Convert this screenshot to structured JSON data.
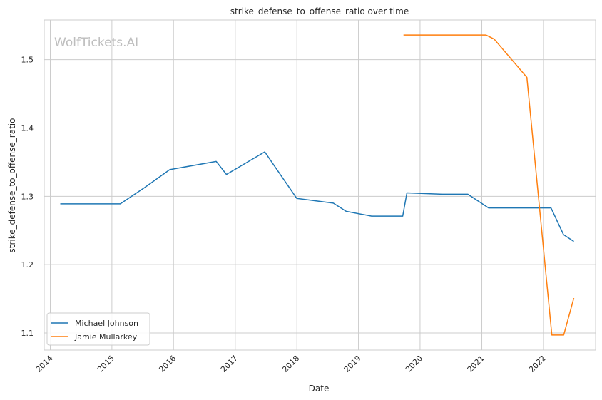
{
  "chart_data": {
    "type": "line",
    "title": "strike_defense_to_offense_ratio over time",
    "xlabel": "Date",
    "ylabel": "strike_defense_to_offense_ratio",
    "watermark": "WolfTickets.AI",
    "x_ticks": [
      "2014",
      "2015",
      "2016",
      "2017",
      "2018",
      "2019",
      "2020",
      "2021",
      "2022"
    ],
    "y_ticks": [
      "1.1",
      "1.2",
      "1.3",
      "1.4",
      "1.5"
    ],
    "xlim": [
      "2013-11-26",
      "2022-11-06"
    ],
    "ylim": [
      1.075,
      1.558
    ],
    "grid": true,
    "legend_position": "lower-left",
    "series": [
      {
        "name": "Michael Johnson",
        "color": "#1f77b4",
        "points": [
          [
            "2014-03-01",
            1.289
          ],
          [
            "2015-02-20",
            1.289
          ],
          [
            "2015-07-15",
            1.313
          ],
          [
            "2015-12-10",
            1.339
          ],
          [
            "2016-09-10",
            1.351
          ],
          [
            "2016-11-10",
            1.332
          ],
          [
            "2017-06-25",
            1.365
          ],
          [
            "2017-12-31",
            1.297
          ],
          [
            "2018-08-05",
            1.29
          ],
          [
            "2018-10-20",
            1.278
          ],
          [
            "2019-03-20",
            1.271
          ],
          [
            "2019-09-20",
            1.271
          ],
          [
            "2019-10-15",
            1.305
          ],
          [
            "2020-05-10",
            1.303
          ],
          [
            "2020-10-10",
            1.303
          ],
          [
            "2021-02-10",
            1.283
          ],
          [
            "2022-02-15",
            1.283
          ],
          [
            "2022-04-30",
            1.244
          ],
          [
            "2022-06-30",
            1.234
          ]
        ]
      },
      {
        "name": "Jamie Mullarkey",
        "color": "#ff7f0e",
        "points": [
          [
            "2019-09-25",
            1.536
          ],
          [
            "2021-01-25",
            1.536
          ],
          [
            "2021-03-15",
            1.53
          ],
          [
            "2021-09-25",
            1.474
          ],
          [
            "2022-02-20",
            1.097
          ],
          [
            "2022-05-01",
            1.097
          ],
          [
            "2022-06-30",
            1.151
          ]
        ]
      }
    ]
  }
}
